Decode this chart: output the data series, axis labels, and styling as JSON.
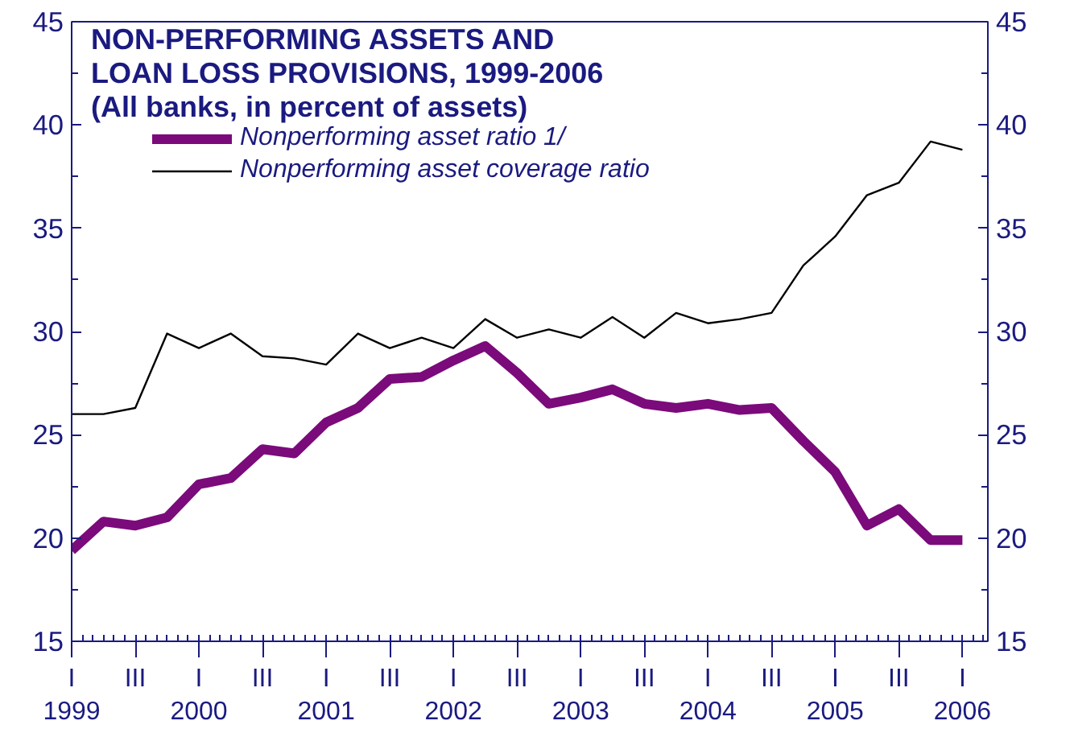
{
  "chart_data": {
    "type": "line",
    "title": "NON-PERFORMING ASSETS AND\nLOAN LOSS PROVISIONS, 1999-2006\n(All banks, in percent of assets)",
    "categories": [
      "I\n1999",
      null,
      "III",
      null,
      "I\n2000",
      null,
      "III",
      null,
      "I\n2001",
      null,
      "III",
      null,
      "I\n2002",
      null,
      "III",
      null,
      "I\n2003",
      null,
      "III",
      null,
      "I\n2004",
      null,
      "III",
      null,
      "I\n2005",
      null,
      "III",
      null,
      "I\n2006"
    ],
    "series": [
      {
        "name": "Nonperforming asset ratio 1/",
        "color": "#7b0a7b",
        "values": [
          19.4,
          20.8,
          20.6,
          21.0,
          22.6,
          22.9,
          24.3,
          24.1,
          25.6,
          26.3,
          27.7,
          27.8,
          28.6,
          29.3,
          28.0,
          26.5,
          26.8,
          27.2,
          26.5,
          26.3,
          26.5,
          26.2,
          26.3,
          24.7,
          23.2,
          20.6,
          21.4,
          19.9,
          19.9
        ]
      },
      {
        "name": "Nonperforming asset coverage ratio",
        "color": "#000000",
        "values": [
          26.0,
          26.0,
          26.3,
          29.9,
          29.2,
          29.9,
          28.8,
          28.7,
          28.4,
          29.9,
          29.2,
          29.7,
          29.2,
          30.6,
          29.7,
          30.1,
          29.7,
          30.7,
          29.7,
          30.9,
          30.4,
          30.6,
          30.9,
          33.2,
          34.6,
          36.6,
          37.2,
          39.2,
          38.8
        ]
      }
    ],
    "ylim": [
      15,
      45
    ],
    "yticks": [
      15,
      20,
      25,
      30,
      35,
      40,
      45
    ],
    "y2lim": [
      15,
      45
    ],
    "y2ticks": [
      15,
      20,
      25,
      30,
      35,
      40,
      45
    ],
    "legend": "top left",
    "grid": false,
    "marker": "none",
    "line_style": "solid"
  }
}
